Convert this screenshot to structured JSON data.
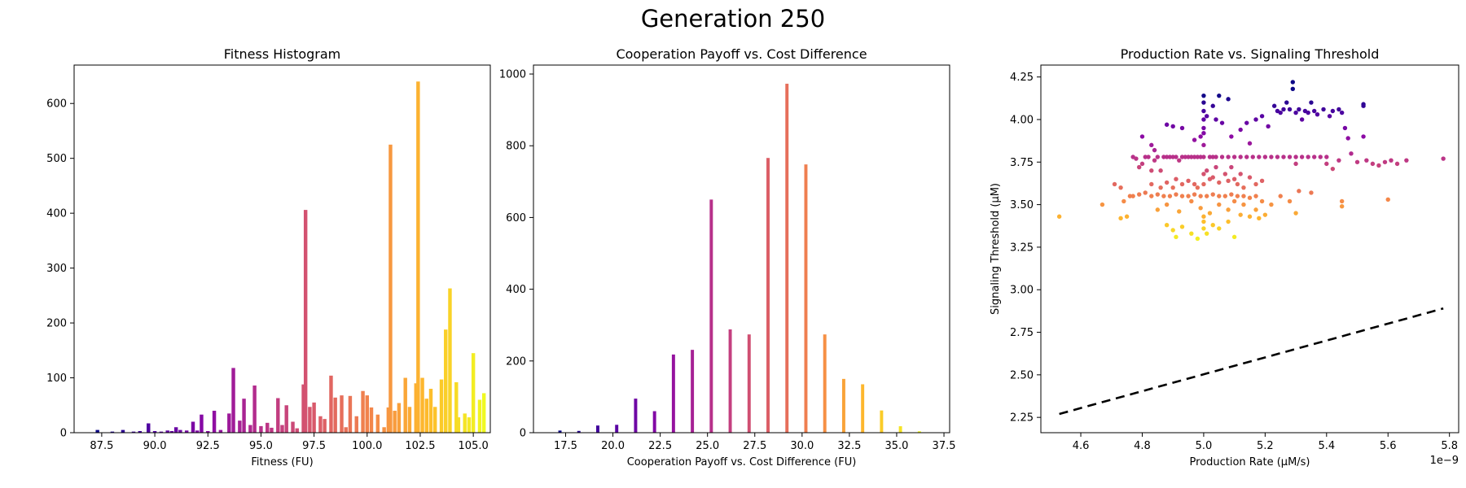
{
  "figure": {
    "title": "Generation 250"
  },
  "chart_data": [
    {
      "type": "bar",
      "title": "Fitness Histogram",
      "xlabel": "Fitness (FU)",
      "ylabel": "",
      "xlim": [
        86.2,
        105.8
      ],
      "ylim": [
        0,
        670
      ],
      "xticks": [
        87.5,
        90.0,
        92.5,
        95.0,
        97.5,
        100.0,
        102.5,
        105.0
      ],
      "xtick_labels": [
        "87.5",
        "90.0",
        "92.5",
        "95.0",
        "97.5",
        "100.0",
        "102.5",
        "105.0"
      ],
      "yticks": [
        0,
        100,
        200,
        300,
        400,
        500,
        600
      ],
      "ytick_labels": [
        "0",
        "100",
        "200",
        "300",
        "400",
        "500",
        "600"
      ],
      "colormap": "plasma",
      "bins": [
        [
          87.3,
          5
        ],
        [
          88.0,
          2
        ],
        [
          88.5,
          5
        ],
        [
          89.0,
          2
        ],
        [
          89.3,
          3
        ],
        [
          89.7,
          17
        ],
        [
          90.0,
          3
        ],
        [
          90.3,
          2
        ],
        [
          90.6,
          4
        ],
        [
          90.8,
          3
        ],
        [
          91.0,
          10
        ],
        [
          91.2,
          5
        ],
        [
          91.5,
          4
        ],
        [
          91.8,
          20
        ],
        [
          92.0,
          4
        ],
        [
          92.2,
          33
        ],
        [
          92.5,
          3
        ],
        [
          92.8,
          40
        ],
        [
          93.1,
          5
        ],
        [
          93.5,
          35
        ],
        [
          93.7,
          118
        ],
        [
          94.0,
          22
        ],
        [
          94.2,
          62
        ],
        [
          94.5,
          14
        ],
        [
          94.7,
          86
        ],
        [
          95.0,
          12
        ],
        [
          95.3,
          18
        ],
        [
          95.5,
          9
        ],
        [
          95.8,
          63
        ],
        [
          96.0,
          14
        ],
        [
          96.2,
          50
        ],
        [
          96.5,
          20
        ],
        [
          96.7,
          8
        ],
        [
          97.0,
          88
        ],
        [
          97.1,
          406
        ],
        [
          97.3,
          47
        ],
        [
          97.5,
          55
        ],
        [
          97.8,
          30
        ],
        [
          98.0,
          25
        ],
        [
          98.3,
          104
        ],
        [
          98.5,
          64
        ],
        [
          98.8,
          68
        ],
        [
          99.0,
          10
        ],
        [
          99.2,
          67
        ],
        [
          99.5,
          30
        ],
        [
          99.8,
          76
        ],
        [
          100.0,
          68
        ],
        [
          100.2,
          46
        ],
        [
          100.5,
          33
        ],
        [
          100.8,
          10
        ],
        [
          101.0,
          46
        ],
        [
          101.1,
          525
        ],
        [
          101.3,
          40
        ],
        [
          101.5,
          54
        ],
        [
          101.8,
          100
        ],
        [
          102.0,
          47
        ],
        [
          102.3,
          90
        ],
        [
          102.4,
          640
        ],
        [
          102.6,
          100
        ],
        [
          102.8,
          62
        ],
        [
          103.0,
          80
        ],
        [
          103.2,
          47
        ],
        [
          103.5,
          97
        ],
        [
          103.7,
          188
        ],
        [
          103.9,
          263
        ],
        [
          104.2,
          92
        ],
        [
          104.3,
          28
        ],
        [
          104.6,
          35
        ],
        [
          104.8,
          28
        ],
        [
          105.0,
          145
        ],
        [
          105.3,
          60
        ],
        [
          105.5,
          72
        ]
      ]
    },
    {
      "type": "bar",
      "title": "Cooperation Payoff vs. Cost Difference",
      "xlabel": "Cooperation Payoff vs. Cost Difference (FU)",
      "ylabel": "",
      "xlim": [
        15.8,
        37.8
      ],
      "ylim": [
        0,
        1025
      ],
      "xticks": [
        17.5,
        20.0,
        22.5,
        25.0,
        27.5,
        30.0,
        32.5,
        35.0,
        37.5
      ],
      "xtick_labels": [
        "17.5",
        "20.0",
        "22.5",
        "25.0",
        "27.5",
        "30.0",
        "32.5",
        "35.0",
        "37.5"
      ],
      "yticks": [
        0,
        200,
        400,
        600,
        800,
        1000
      ],
      "ytick_labels": [
        "0",
        "200",
        "400",
        "600",
        "800",
        "1000"
      ],
      "colormap": "plasma",
      "bins": [
        [
          17.2,
          6
        ],
        [
          18.2,
          5
        ],
        [
          19.2,
          20
        ],
        [
          20.2,
          22
        ],
        [
          21.2,
          95
        ],
        [
          22.2,
          60
        ],
        [
          23.2,
          218
        ],
        [
          24.2,
          231
        ],
        [
          25.2,
          650
        ],
        [
          26.2,
          288
        ],
        [
          27.2,
          274
        ],
        [
          28.2,
          766
        ],
        [
          29.2,
          973
        ],
        [
          30.2,
          748
        ],
        [
          31.2,
          274
        ],
        [
          32.2,
          150
        ],
        [
          33.2,
          135
        ],
        [
          34.2,
          62
        ],
        [
          35.2,
          18
        ],
        [
          36.2,
          4
        ]
      ]
    },
    {
      "type": "scatter",
      "title": "Production Rate vs. Signaling Threshold",
      "xlabel": "Production Rate (μM/s)",
      "ylabel": "Signaling Threshold (μM)",
      "x_offset_label": "1e−9",
      "xlim": [
        4.47,
        5.83
      ],
      "ylim": [
        2.16,
        4.32
      ],
      "xticks": [
        4.6,
        4.8,
        5.0,
        5.2,
        5.4,
        5.6,
        5.8
      ],
      "xtick_labels": [
        "4.6",
        "4.8",
        "5.0",
        "5.2",
        "5.4",
        "5.6",
        "5.8"
      ],
      "yticks": [
        2.25,
        2.5,
        2.75,
        3.0,
        3.25,
        3.5,
        3.75,
        4.0,
        4.25
      ],
      "ytick_labels": [
        "2.25",
        "2.50",
        "2.75",
        "3.00",
        "3.25",
        "3.50",
        "3.75",
        "4.00",
        "4.25"
      ],
      "colormap": "plasma",
      "fit_line": {
        "style": "dashed",
        "x": [
          4.53,
          5.78
        ],
        "y": [
          2.27,
          2.89
        ]
      },
      "points": [
        [
          4.53,
          3.43
        ],
        [
          4.67,
          3.5
        ],
        [
          4.71,
          3.62
        ],
        [
          4.73,
          3.6
        ],
        [
          4.74,
          3.52
        ],
        [
          4.73,
          3.42
        ],
        [
          4.75,
          3.43
        ],
        [
          4.76,
          3.55
        ],
        [
          4.77,
          3.78
        ],
        [
          4.78,
          3.77
        ],
        [
          4.79,
          3.72
        ],
        [
          4.8,
          3.74
        ],
        [
          4.81,
          3.78
        ],
        [
          4.82,
          3.78
        ],
        [
          4.83,
          3.7
        ],
        [
          4.84,
          3.76
        ],
        [
          4.85,
          3.78
        ],
        [
          4.86,
          3.7
        ],
        [
          4.87,
          3.78
        ],
        [
          4.88,
          3.78
        ],
        [
          4.89,
          3.78
        ],
        [
          4.9,
          3.78
        ],
        [
          4.91,
          3.78
        ],
        [
          4.92,
          3.76
        ],
        [
          4.93,
          3.78
        ],
        [
          4.94,
          3.78
        ],
        [
          4.95,
          3.78
        ],
        [
          4.96,
          3.78
        ],
        [
          4.97,
          3.78
        ],
        [
          4.98,
          3.78
        ],
        [
          4.99,
          3.78
        ],
        [
          5.0,
          3.78
        ],
        [
          5.02,
          3.78
        ],
        [
          5.03,
          3.78
        ],
        [
          5.04,
          3.78
        ],
        [
          5.06,
          3.78
        ],
        [
          5.08,
          3.78
        ],
        [
          5.1,
          3.78
        ],
        [
          5.12,
          3.78
        ],
        [
          5.14,
          3.78
        ],
        [
          5.16,
          3.78
        ],
        [
          5.18,
          3.78
        ],
        [
          5.2,
          3.78
        ],
        [
          5.22,
          3.78
        ],
        [
          5.24,
          3.78
        ],
        [
          5.26,
          3.78
        ],
        [
          5.28,
          3.78
        ],
        [
          5.3,
          3.78
        ],
        [
          5.32,
          3.78
        ],
        [
          5.34,
          3.78
        ],
        [
          5.36,
          3.78
        ],
        [
          5.38,
          3.78
        ],
        [
          5.4,
          3.78
        ],
        [
          4.8,
          3.9
        ],
        [
          4.83,
          3.85
        ],
        [
          4.84,
          3.82
        ],
        [
          4.88,
          3.97
        ],
        [
          4.9,
          3.96
        ],
        [
          4.93,
          3.95
        ],
        [
          4.97,
          3.88
        ],
        [
          4.99,
          3.9
        ],
        [
          5.0,
          3.95
        ],
        [
          5.0,
          4.0
        ],
        [
          5.0,
          4.05
        ],
        [
          5.0,
          4.1
        ],
        [
          5.0,
          4.14
        ],
        [
          5.0,
          3.85
        ],
        [
          5.0,
          3.92
        ],
        [
          5.01,
          4.02
        ],
        [
          5.03,
          4.08
        ],
        [
          5.04,
          4.0
        ],
        [
          5.05,
          4.14
        ],
        [
          5.06,
          3.98
        ],
        [
          5.08,
          4.12
        ],
        [
          5.09,
          3.9
        ],
        [
          5.12,
          3.94
        ],
        [
          5.14,
          3.98
        ],
        [
          5.15,
          3.86
        ],
        [
          5.17,
          4.0
        ],
        [
          5.19,
          4.02
        ],
        [
          5.21,
          3.96
        ],
        [
          5.23,
          4.08
        ],
        [
          5.24,
          4.05
        ],
        [
          5.25,
          4.04
        ],
        [
          5.26,
          4.06
        ],
        [
          5.27,
          4.1
        ],
        [
          5.28,
          4.06
        ],
        [
          5.29,
          4.18
        ],
        [
          5.29,
          4.22
        ],
        [
          5.3,
          4.04
        ],
        [
          5.31,
          4.06
        ],
        [
          5.32,
          4.0
        ],
        [
          5.33,
          4.05
        ],
        [
          5.34,
          4.04
        ],
        [
          5.35,
          4.1
        ],
        [
          5.36,
          4.05
        ],
        [
          5.37,
          4.03
        ],
        [
          5.39,
          4.06
        ],
        [
          5.41,
          4.02
        ],
        [
          5.42,
          4.05
        ],
        [
          5.44,
          4.06
        ],
        [
          5.45,
          4.04
        ],
        [
          5.46,
          3.95
        ],
        [
          5.47,
          3.89
        ],
        [
          5.52,
          4.08
        ],
        [
          5.52,
          4.09
        ],
        [
          5.52,
          3.9
        ],
        [
          4.83,
          3.62
        ],
        [
          4.86,
          3.6
        ],
        [
          4.88,
          3.63
        ],
        [
          4.9,
          3.6
        ],
        [
          4.91,
          3.65
        ],
        [
          4.93,
          3.62
        ],
        [
          4.95,
          3.64
        ],
        [
          4.97,
          3.62
        ],
        [
          4.98,
          3.6
        ],
        [
          5.0,
          3.62
        ],
        [
          5.0,
          3.68
        ],
        [
          5.01,
          3.7
        ],
        [
          5.02,
          3.65
        ],
        [
          5.03,
          3.66
        ],
        [
          5.04,
          3.72
        ],
        [
          5.05,
          3.63
        ],
        [
          5.07,
          3.68
        ],
        [
          5.08,
          3.64
        ],
        [
          5.09,
          3.72
        ],
        [
          5.1,
          3.65
        ],
        [
          5.11,
          3.62
        ],
        [
          5.12,
          3.68
        ],
        [
          5.13,
          3.6
        ],
        [
          5.15,
          3.66
        ],
        [
          5.17,
          3.62
        ],
        [
          5.19,
          3.64
        ],
        [
          4.77,
          3.55
        ],
        [
          4.79,
          3.56
        ],
        [
          4.81,
          3.57
        ],
        [
          4.83,
          3.55
        ],
        [
          4.85,
          3.56
        ],
        [
          4.87,
          3.55
        ],
        [
          4.89,
          3.55
        ],
        [
          4.91,
          3.56
        ],
        [
          4.93,
          3.55
        ],
        [
          4.95,
          3.55
        ],
        [
          4.97,
          3.56
        ],
        [
          4.99,
          3.55
        ],
        [
          5.01,
          3.55
        ],
        [
          5.03,
          3.56
        ],
        [
          5.05,
          3.55
        ],
        [
          5.07,
          3.55
        ],
        [
          5.09,
          3.56
        ],
        [
          5.11,
          3.55
        ],
        [
          5.13,
          3.55
        ],
        [
          5.15,
          3.54
        ],
        [
          5.17,
          3.55
        ],
        [
          5.19,
          3.52
        ],
        [
          4.85,
          3.47
        ],
        [
          4.88,
          3.5
        ],
        [
          4.92,
          3.46
        ],
        [
          4.96,
          3.52
        ],
        [
          4.99,
          3.48
        ],
        [
          5.02,
          3.45
        ],
        [
          5.05,
          3.5
        ],
        [
          5.08,
          3.47
        ],
        [
          5.1,
          3.52
        ],
        [
          5.13,
          3.5
        ],
        [
          5.17,
          3.47
        ],
        [
          5.2,
          3.44
        ],
        [
          5.22,
          3.5
        ],
        [
          5.25,
          3.55
        ],
        [
          5.28,
          3.52
        ],
        [
          5.31,
          3.58
        ],
        [
          5.35,
          3.57
        ],
        [
          5.45,
          3.52
        ],
        [
          5.45,
          3.49
        ],
        [
          4.88,
          3.38
        ],
        [
          4.9,
          3.35
        ],
        [
          4.91,
          3.31
        ],
        [
          4.93,
          3.37
        ],
        [
          4.96,
          3.33
        ],
        [
          4.98,
          3.3
        ],
        [
          5.0,
          3.43
        ],
        [
          5.0,
          3.4
        ],
        [
          5.0,
          3.36
        ],
        [
          5.01,
          3.33
        ],
        [
          5.03,
          3.38
        ],
        [
          5.05,
          3.36
        ],
        [
          5.08,
          3.4
        ],
        [
          5.1,
          3.31
        ],
        [
          5.12,
          3.44
        ],
        [
          5.15,
          3.43
        ],
        [
          5.18,
          3.42
        ],
        [
          5.3,
          3.45
        ],
        [
          5.6,
          3.53
        ],
        [
          5.3,
          3.74
        ],
        [
          5.4,
          3.74
        ],
        [
          5.42,
          3.71
        ],
        [
          5.44,
          3.76
        ],
        [
          5.5,
          3.75
        ],
        [
          5.53,
          3.76
        ],
        [
          5.55,
          3.74
        ],
        [
          5.57,
          3.73
        ],
        [
          5.59,
          3.75
        ],
        [
          5.61,
          3.76
        ],
        [
          5.63,
          3.74
        ],
        [
          5.66,
          3.76
        ],
        [
          5.78,
          3.77
        ],
        [
          5.48,
          3.8
        ]
      ]
    }
  ]
}
